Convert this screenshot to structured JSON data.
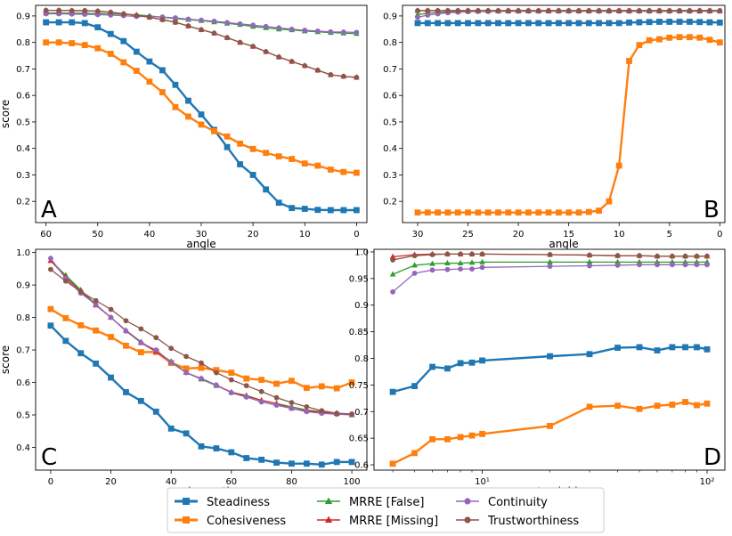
{
  "colors": {
    "steadiness": "#1f77b4",
    "cohesiveness": "#ff7f0e",
    "mrre_false": "#2ca02c",
    "mrre_missing": "#d62728",
    "continuity": "#9467bd",
    "trustworthiness": "#8c564b"
  },
  "legend": {
    "steadiness": "Steadiness",
    "cohesiveness": "Cohesiveness",
    "mrre_false": "MRRE [False]",
    "mrre_missing": "MRRE [Missing]",
    "continuity": "Continuity",
    "trustworthiness": "Trustworthiness"
  },
  "chart_data": [
    {
      "panel": "A",
      "type": "line",
      "xlabel": "angle",
      "ylabel": "score",
      "x_inverted": true,
      "xlim": [
        62,
        -2
      ],
      "ylim": [
        0.12,
        0.94
      ],
      "xticks": [
        60,
        50,
        40,
        30,
        20,
        10,
        0
      ],
      "yticks": [
        0.2,
        0.3,
        0.4,
        0.5,
        0.6,
        0.7,
        0.8,
        0.9
      ],
      "x": [
        60,
        57.5,
        55,
        52.5,
        50,
        47.5,
        45,
        42.5,
        40,
        37.5,
        35,
        32.5,
        30,
        27.5,
        25,
        22.5,
        20,
        17.5,
        15,
        12.5,
        10,
        7.5,
        5,
        2.5,
        0
      ],
      "series": [
        {
          "name": "steadiness",
          "marker": "square",
          "values": [
            0.876,
            0.876,
            0.876,
            0.873,
            0.857,
            0.832,
            0.805,
            0.765,
            0.728,
            0.695,
            0.64,
            0.58,
            0.528,
            0.47,
            0.405,
            0.34,
            0.3,
            0.245,
            0.195,
            0.175,
            0.172,
            0.168,
            0.167,
            0.167,
            0.167
          ]
        },
        {
          "name": "cohesiveness",
          "marker": "square",
          "values": [
            0.8,
            0.8,
            0.797,
            0.79,
            0.778,
            0.757,
            0.725,
            0.693,
            0.652,
            0.612,
            0.556,
            0.52,
            0.49,
            0.465,
            0.445,
            0.418,
            0.398,
            0.383,
            0.37,
            0.36,
            0.343,
            0.335,
            0.32,
            0.311,
            0.308
          ]
        },
        {
          "name": "mrre_false",
          "marker": "triangle",
          "values": [
            0.911,
            0.911,
            0.911,
            0.91,
            0.909,
            0.908,
            0.906,
            0.904,
            0.9,
            0.895,
            0.89,
            0.886,
            0.882,
            0.877,
            0.872,
            0.867,
            0.86,
            0.855,
            0.85,
            0.847,
            0.843,
            0.84,
            0.837,
            0.835,
            0.833
          ]
        },
        {
          "name": "mrre_missing",
          "marker": "triangle",
          "values": [
            0.921,
            0.921,
            0.92,
            0.92,
            0.918,
            0.914,
            0.908,
            0.902,
            0.895,
            0.886,
            0.876,
            0.862,
            0.848,
            0.835,
            0.818,
            0.8,
            0.785,
            0.765,
            0.745,
            0.728,
            0.712,
            0.695,
            0.678,
            0.672,
            0.668
          ]
        },
        {
          "name": "continuity",
          "marker": "circle",
          "values": [
            0.908,
            0.908,
            0.907,
            0.906,
            0.905,
            0.903,
            0.901,
            0.898,
            0.898,
            0.896,
            0.893,
            0.888,
            0.884,
            0.88,
            0.875,
            0.87,
            0.865,
            0.86,
            0.855,
            0.85,
            0.846,
            0.843,
            0.84,
            0.839,
            0.838
          ]
        },
        {
          "name": "trustworthiness",
          "marker": "circle",
          "values": [
            0.921,
            0.921,
            0.92,
            0.92,
            0.918,
            0.914,
            0.908,
            0.902,
            0.895,
            0.886,
            0.876,
            0.862,
            0.848,
            0.835,
            0.818,
            0.8,
            0.785,
            0.765,
            0.745,
            0.728,
            0.712,
            0.695,
            0.678,
            0.672,
            0.668
          ]
        }
      ]
    },
    {
      "panel": "B",
      "type": "line",
      "xlabel": "angle",
      "ylabel": "",
      "x_inverted": true,
      "xlim": [
        31.5,
        -0.5
      ],
      "ylim": [
        0.12,
        0.94
      ],
      "xticks": [
        30,
        25,
        20,
        15,
        10,
        5,
        0
      ],
      "yticks": [
        0.2,
        0.3,
        0.4,
        0.5,
        0.6,
        0.7,
        0.8,
        0.9
      ],
      "x": [
        30,
        29,
        28,
        27,
        26,
        25,
        24,
        23,
        22,
        21,
        20,
        19,
        18,
        17,
        16,
        15,
        14,
        13,
        12,
        11,
        10,
        9,
        8,
        7,
        6,
        5,
        4,
        3,
        2,
        1,
        0
      ],
      "series": [
        {
          "name": "steadiness",
          "marker": "square",
          "values": [
            0.873,
            0.873,
            0.873,
            0.873,
            0.873,
            0.873,
            0.873,
            0.873,
            0.873,
            0.873,
            0.873,
            0.873,
            0.873,
            0.873,
            0.873,
            0.873,
            0.873,
            0.873,
            0.873,
            0.873,
            0.873,
            0.875,
            0.876,
            0.877,
            0.878,
            0.878,
            0.878,
            0.878,
            0.877,
            0.876,
            0.875
          ]
        },
        {
          "name": "cohesiveness",
          "marker": "square",
          "values": [
            0.158,
            0.158,
            0.158,
            0.158,
            0.158,
            0.158,
            0.158,
            0.158,
            0.158,
            0.158,
            0.158,
            0.158,
            0.158,
            0.158,
            0.158,
            0.158,
            0.158,
            0.16,
            0.165,
            0.2,
            0.335,
            0.73,
            0.79,
            0.808,
            0.812,
            0.818,
            0.82,
            0.82,
            0.818,
            0.81,
            0.8
          ]
        },
        {
          "name": "mrre_false",
          "marker": "triangle",
          "values": [
            0.905,
            0.91,
            0.913,
            0.915,
            0.917,
            0.918,
            0.918,
            0.918,
            0.918,
            0.918,
            0.918,
            0.918,
            0.918,
            0.918,
            0.918,
            0.918,
            0.918,
            0.918,
            0.918,
            0.918,
            0.918,
            0.918,
            0.918,
            0.918,
            0.918,
            0.918,
            0.918,
            0.918,
            0.918,
            0.918,
            0.918
          ]
        },
        {
          "name": "mrre_missing",
          "marker": "triangle",
          "values": [
            0.92,
            0.92,
            0.92,
            0.92,
            0.92,
            0.92,
            0.92,
            0.92,
            0.92,
            0.92,
            0.92,
            0.92,
            0.92,
            0.92,
            0.92,
            0.92,
            0.92,
            0.92,
            0.92,
            0.92,
            0.92,
            0.92,
            0.92,
            0.92,
            0.92,
            0.92,
            0.92,
            0.92,
            0.92,
            0.92,
            0.92
          ]
        },
        {
          "name": "continuity",
          "marker": "circle",
          "values": [
            0.895,
            0.903,
            0.908,
            0.912,
            0.914,
            0.916,
            0.917,
            0.917,
            0.918,
            0.918,
            0.918,
            0.918,
            0.918,
            0.918,
            0.918,
            0.918,
            0.918,
            0.918,
            0.918,
            0.918,
            0.918,
            0.918,
            0.918,
            0.918,
            0.918,
            0.918,
            0.918,
            0.918,
            0.918,
            0.918,
            0.918
          ]
        },
        {
          "name": "trustworthiness",
          "marker": "circle",
          "values": [
            0.92,
            0.92,
            0.92,
            0.92,
            0.92,
            0.92,
            0.92,
            0.92,
            0.92,
            0.92,
            0.92,
            0.92,
            0.92,
            0.92,
            0.92,
            0.92,
            0.92,
            0.92,
            0.92,
            0.92,
            0.92,
            0.92,
            0.92,
            0.92,
            0.92,
            0.92,
            0.92,
            0.92,
            0.92,
            0.92,
            0.92
          ]
        }
      ]
    },
    {
      "panel": "C",
      "type": "line",
      "xlabel": "random ratio",
      "ylabel": "score",
      "x_inverted": false,
      "xlim": [
        -5,
        105
      ],
      "ylim": [
        0.33,
        1.01
      ],
      "xticks": [
        0,
        20,
        40,
        60,
        80,
        100
      ],
      "yticks": [
        0.4,
        0.5,
        0.6,
        0.7,
        0.8,
        0.9,
        1.0
      ],
      "x": [
        0,
        5,
        10,
        15,
        20,
        25,
        30,
        35,
        40,
        45,
        50,
        55,
        60,
        65,
        70,
        75,
        80,
        85,
        90,
        95,
        100
      ],
      "series": [
        {
          "name": "steadiness",
          "marker": "square",
          "values": [
            0.775,
            0.728,
            0.69,
            0.658,
            0.615,
            0.57,
            0.543,
            0.51,
            0.458,
            0.443,
            0.403,
            0.397,
            0.385,
            0.367,
            0.362,
            0.353,
            0.35,
            0.35,
            0.347,
            0.355,
            0.355
          ]
        },
        {
          "name": "cohesiveness",
          "marker": "square",
          "values": [
            0.826,
            0.798,
            0.776,
            0.76,
            0.74,
            0.713,
            0.693,
            0.694,
            0.66,
            0.643,
            0.645,
            0.638,
            0.63,
            0.612,
            0.608,
            0.596,
            0.605,
            0.583,
            0.588,
            0.582,
            0.6
          ]
        },
        {
          "name": "mrre_false",
          "marker": "triangle",
          "values": [
            0.975,
            0.93,
            0.885,
            0.84,
            0.8,
            0.76,
            0.725,
            0.695,
            0.665,
            0.63,
            0.61,
            0.59,
            0.57,
            0.56,
            0.545,
            0.535,
            0.525,
            0.515,
            0.51,
            0.505,
            0.5
          ]
        },
        {
          "name": "mrre_missing",
          "marker": "triangle",
          "values": [
            0.975,
            0.925,
            0.88,
            0.838,
            0.8,
            0.76,
            0.722,
            0.695,
            0.662,
            0.63,
            0.612,
            0.592,
            0.57,
            0.558,
            0.545,
            0.535,
            0.52,
            0.513,
            0.508,
            0.504,
            0.5
          ]
        },
        {
          "name": "continuity",
          "marker": "circle",
          "values": [
            0.982,
            0.92,
            0.875,
            0.84,
            0.8,
            0.758,
            0.722,
            0.7,
            0.662,
            0.63,
            0.612,
            0.592,
            0.568,
            0.555,
            0.54,
            0.53,
            0.52,
            0.51,
            0.505,
            0.502,
            0.5
          ]
        },
        {
          "name": "trustworthiness",
          "marker": "circle",
          "values": [
            0.948,
            0.912,
            0.88,
            0.852,
            0.825,
            0.79,
            0.765,
            0.738,
            0.705,
            0.68,
            0.66,
            0.63,
            0.608,
            0.59,
            0.572,
            0.553,
            0.538,
            0.525,
            0.513,
            0.505,
            0.503
          ]
        }
      ]
    },
    {
      "panel": "D",
      "type": "line",
      "xlabel": "nearest neighbors",
      "ylabel": "",
      "xscale": "log",
      "x_inverted": false,
      "xlim": [
        3.3,
        120
      ],
      "ylim": [
        0.59,
        1.005
      ],
      "xticks": [
        10,
        100
      ],
      "xtick_labels": [
        "10¹",
        "10²"
      ],
      "yticks": [
        0.6,
        0.65,
        0.7,
        0.75,
        0.8,
        0.85,
        0.9,
        0.95,
        1.0
      ],
      "x": [
        4,
        5,
        6,
        7,
        8,
        9,
        10,
        20,
        30,
        40,
        50,
        60,
        70,
        80,
        90,
        100
      ],
      "series": [
        {
          "name": "steadiness",
          "marker": "square",
          "values": [
            0.737,
            0.748,
            0.784,
            0.781,
            0.791,
            0.792,
            0.796,
            0.804,
            0.808,
            0.82,
            0.821,
            0.815,
            0.821,
            0.821,
            0.821,
            0.817
          ]
        },
        {
          "name": "cohesiveness",
          "marker": "square",
          "values": [
            0.602,
            0.622,
            0.648,
            0.648,
            0.652,
            0.655,
            0.658,
            0.673,
            0.709,
            0.711,
            0.705,
            0.711,
            0.713,
            0.718,
            0.712,
            0.715
          ]
        },
        {
          "name": "mrre_false",
          "marker": "triangle",
          "values": [
            0.958,
            0.975,
            0.978,
            0.979,
            0.979,
            0.98,
            0.981,
            0.981,
            0.981,
            0.981,
            0.981,
            0.981,
            0.981,
            0.981,
            0.981,
            0.981
          ]
        },
        {
          "name": "mrre_missing",
          "marker": "triangle",
          "values": [
            0.991,
            0.995,
            0.996,
            0.996,
            0.996,
            0.996,
            0.996,
            0.995,
            0.994,
            0.993,
            0.993,
            0.992,
            0.992,
            0.992,
            0.992,
            0.992
          ]
        },
        {
          "name": "continuity",
          "marker": "circle",
          "values": [
            0.925,
            0.96,
            0.966,
            0.967,
            0.968,
            0.968,
            0.971,
            0.973,
            0.974,
            0.975,
            0.976,
            0.976,
            0.976,
            0.976,
            0.976,
            0.976
          ]
        },
        {
          "name": "trustworthiness",
          "marker": "circle",
          "values": [
            0.985,
            0.993,
            0.995,
            0.996,
            0.996,
            0.996,
            0.996,
            0.995,
            0.994,
            0.993,
            0.993,
            0.992,
            0.992,
            0.992,
            0.992,
            0.992
          ]
        }
      ]
    }
  ]
}
